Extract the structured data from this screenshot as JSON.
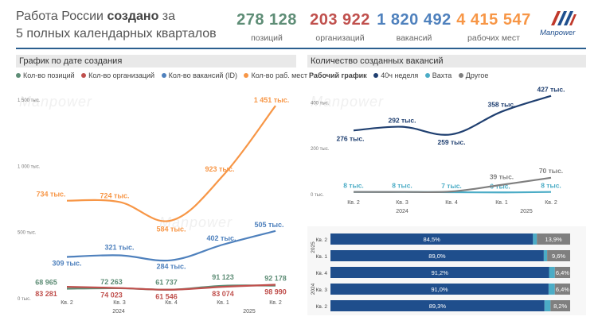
{
  "header": {
    "title_part1": "Работа России ",
    "title_bold": "создано",
    "title_part2": " за",
    "title_line2": "5 полных календарных кварталов",
    "kpis": [
      {
        "value": "278 128",
        "label": "позиций",
        "color": "#5e8d76"
      },
      {
        "value": "203 922",
        "label": "организаций",
        "color": "#c0504d"
      },
      {
        "value": "1 820 492",
        "label": "вакансий",
        "color": "#4f81bd"
      },
      {
        "value": "4 415 547",
        "label": "рабочих мест",
        "color": "#f79646"
      }
    ],
    "logo_text": "Manpower"
  },
  "left_panel": {
    "header": "График по дате создания",
    "legend": [
      {
        "label": "Кол-во позиций",
        "color": "#5e8d76"
      },
      {
        "label": "Кол-во организаций",
        "color": "#c0504d"
      },
      {
        "label": "Кол-во вакансий (ID)",
        "color": "#4f81bd"
      },
      {
        "label": "Кол-во раб. мест",
        "color": "#f79646"
      }
    ],
    "watermark": "Manpower"
  },
  "right_panel": {
    "header": "Количество созданных вакансий",
    "legend_title": "Рабочий график",
    "legend": [
      {
        "label": "40ч неделя",
        "color": "#1f3f70"
      },
      {
        "label": "Вахта",
        "color": "#4bacc6"
      },
      {
        "label": "Другое",
        "color": "#7f7f7f"
      }
    ],
    "watermark": "Manpower"
  },
  "chart_data": [
    {
      "type": "line",
      "title": "График по дате создания",
      "categories": [
        "Кв. 2",
        "Кв. 3",
        "Кв. 4",
        "Кв. 1",
        "Кв. 2"
      ],
      "year_labels": [
        "2024",
        "2025"
      ],
      "yticks": [
        "1 500 тыс.",
        "1 000 тыс.",
        "500 тыс.",
        "0 тыс."
      ],
      "ytick_values": [
        1500,
        1000,
        500,
        0
      ],
      "ylim": [
        0,
        1500
      ],
      "series": [
        {
          "name": "Кол-во раб. мест",
          "color": "#f79646",
          "values": [
            734,
            724,
            584,
            923,
            1451
          ],
          "labels": [
            "734 тыс.",
            "724 тыс.",
            "584 тыс.",
            "923 тыс.",
            "1 451 тыс."
          ]
        },
        {
          "name": "Кол-во вакансий (ID)",
          "color": "#4f81bd",
          "values": [
            309,
            321,
            284,
            402,
            505
          ],
          "labels": [
            "309 тыс.",
            "321 тыс.",
            "284 тыс.",
            "402 тыс.",
            "505 тыс."
          ]
        },
        {
          "name": "Кол-во позиций",
          "color": "#5e8d76",
          "values": [
            68.965,
            72.263,
            61.737,
            91.123,
            92.178
          ],
          "labels": [
            "68 965",
            "72 263",
            "61 737",
            "91 123",
            "92 178"
          ]
        },
        {
          "name": "Кол-во организаций",
          "color": "#c0504d",
          "values": [
            83.281,
            74.023,
            61.546,
            83.074,
            98.99
          ],
          "labels": [
            "83 281",
            "74 023",
            "61 546",
            "83 074",
            "98 990"
          ]
        }
      ]
    },
    {
      "type": "line",
      "title": "Количество созданных вакансий",
      "categories": [
        "Кв. 2",
        "Кв. 3",
        "Кв. 4",
        "Кв. 1",
        "Кв. 2"
      ],
      "year_labels": [
        "2024",
        "2025"
      ],
      "yticks": [
        "400 тыс.",
        "200 тыс.",
        "0 тыс."
      ],
      "ytick_values": [
        400,
        200,
        0
      ],
      "ylim": [
        0,
        450
      ],
      "series": [
        {
          "name": "40ч неделя",
          "color": "#1f3f70",
          "values": [
            276,
            292,
            259,
            358,
            427
          ],
          "labels": [
            "276 тыс.",
            "292 тыс.",
            "259 тыс.",
            "358 тыс.",
            "427 тыс."
          ]
        },
        {
          "name": "Вахта",
          "color": "#4bacc6",
          "values": [
            8,
            8,
            7,
            6,
            8
          ],
          "labels": [
            "8 тыс.",
            "8 тыс.",
            "7 тыс.",
            "6 тыс.",
            "8 тыс."
          ]
        },
        {
          "name": "Другое",
          "color": "#7f7f7f",
          "values": [
            8,
            8,
            10,
            39,
            70
          ],
          "labels": [
            "",
            "",
            "",
            "39 тыс.",
            "70 тыс."
          ]
        }
      ]
    },
    {
      "type": "bar",
      "stacked": "100%",
      "orientation": "horizontal",
      "categories": [
        "Кв. 2",
        "Кв. 1",
        "Кв. 4",
        "Кв. 3",
        "Кв. 2"
      ],
      "year_labels": [
        "2025",
        "2024"
      ],
      "series": [
        {
          "name": "40ч неделя",
          "color": "#1f4e8c",
          "values": [
            84.5,
            89.0,
            91.2,
            91.0,
            89.3
          ],
          "labels": [
            "84,5%",
            "89,0%",
            "91,2%",
            "91,0%",
            "89,3%"
          ]
        },
        {
          "name": "Вахта",
          "color": "#4bacc6",
          "values": [
            1.6,
            1.4,
            2.4,
            2.6,
            2.5
          ]
        },
        {
          "name": "Другое",
          "color": "#7f7f7f",
          "values": [
            13.9,
            9.6,
            6.4,
            6.4,
            8.2
          ],
          "labels": [
            "13,9%",
            "9,6%",
            "6,4%",
            "6,4%",
            "8,2%"
          ]
        }
      ]
    }
  ]
}
